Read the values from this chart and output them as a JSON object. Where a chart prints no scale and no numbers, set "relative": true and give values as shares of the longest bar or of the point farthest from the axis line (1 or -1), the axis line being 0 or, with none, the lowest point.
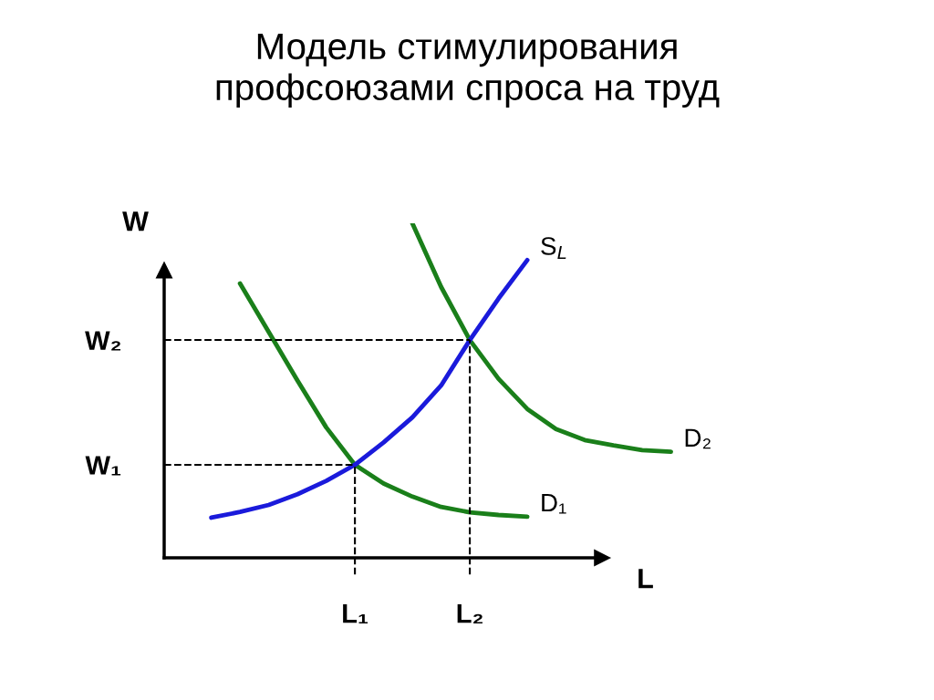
{
  "chart_data": {
    "type": "line",
    "title": "Модель стимулирования\nпрофсоюзами спроса на труд",
    "xlabel": "L",
    "ylabel": "W",
    "relative": true,
    "legend": false,
    "marker": "none",
    "line_style": "solid",
    "categories": [
      null,
      null,
      null,
      null,
      null,
      "L₁",
      null,
      null,
      null,
      "L₂",
      null,
      null,
      null,
      null,
      null,
      null,
      null
    ],
    "series": [
      {
        "name": "D₁",
        "color": "#1a7f1a",
        "values": [
          null,
          0.82,
          0.675,
          0.53,
          0.39,
          0.278,
          0.222,
          0.183,
          0.152,
          0.136,
          0.128,
          0.123,
          null,
          null,
          null,
          null,
          null
        ]
      },
      {
        "name": "D₂",
        "color": "#1a7f1a",
        "values": [
          null,
          null,
          null,
          null,
          null,
          null,
          null,
          1.0,
          0.81,
          0.651,
          0.535,
          0.445,
          0.385,
          0.352,
          0.336,
          0.322,
          0.317
        ]
      },
      {
        "name": "S$_{L}$",
        "color": "#1a1adb",
        "values": [
          0.12,
          0.137,
          0.158,
          0.19,
          0.23,
          0.278,
          0.345,
          0.42,
          0.515,
          0.651,
          0.775,
          0.89,
          null,
          null,
          null,
          null,
          null
        ]
      }
    ],
    "ref_lines": [
      {
        "axis": "y",
        "value": 0.278,
        "label": "W₁",
        "color": "#000000",
        "line_style": "dashed"
      },
      {
        "axis": "y",
        "value": 0.651,
        "label": "W₂",
        "color": "#000000",
        "line_style": "dashed"
      },
      {
        "axis": "x",
        "value": "L₁",
        "color": "#000000",
        "line_style": "dashed"
      },
      {
        "axis": "x",
        "value": "L₂",
        "color": "#000000",
        "line_style": "dashed"
      }
    ]
  }
}
